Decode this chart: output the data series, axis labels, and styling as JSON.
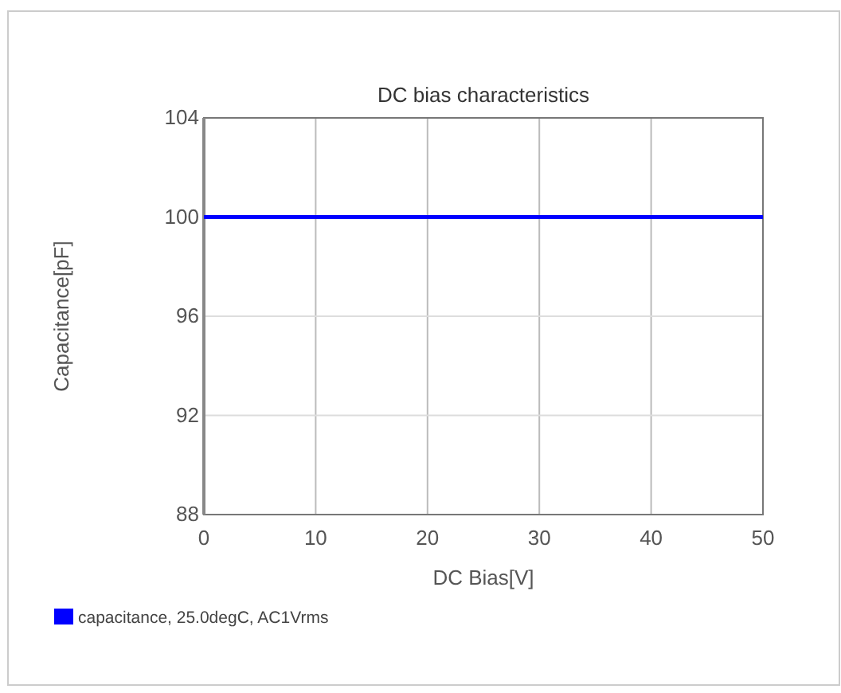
{
  "chart_data": {
    "type": "line",
    "title": "DC bias characteristics",
    "xlabel": "DC Bias[V]",
    "ylabel": "Capacitance[pF]",
    "x": [
      0,
      50
    ],
    "series": [
      {
        "name": "capacitance, 25.0degC, AC1Vrms",
        "color": "#0000ff",
        "values": [
          100,
          100
        ]
      }
    ],
    "xlim": [
      0,
      50
    ],
    "xticks": [
      0,
      10,
      20,
      30,
      40,
      50
    ],
    "ylim": [
      88,
      104
    ],
    "yticks": [
      88,
      92,
      96,
      100,
      104
    ],
    "grid": true,
    "legend": "bottom left"
  }
}
